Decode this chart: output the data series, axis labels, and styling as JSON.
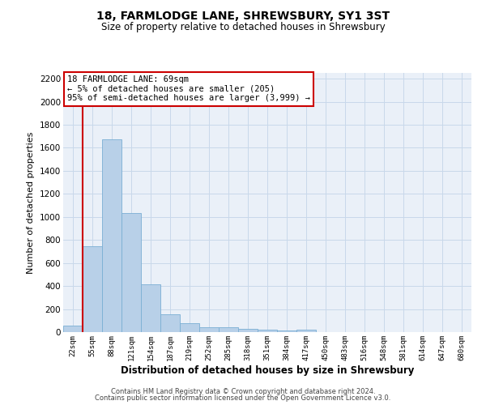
{
  "title1": "18, FARMLODGE LANE, SHREWSBURY, SY1 3ST",
  "title2": "Size of property relative to detached houses in Shrewsbury",
  "xlabel": "Distribution of detached houses by size in Shrewsbury",
  "ylabel": "Number of detached properties",
  "bar_color": "#b8d0e8",
  "bar_edge_color": "#7aafd4",
  "grid_color": "#c8d8ea",
  "background_color": "#eaf0f8",
  "categories": [
    "22sqm",
    "55sqm",
    "88sqm",
    "121sqm",
    "154sqm",
    "187sqm",
    "219sqm",
    "252sqm",
    "285sqm",
    "318sqm",
    "351sqm",
    "384sqm",
    "417sqm",
    "450sqm",
    "483sqm",
    "516sqm",
    "548sqm",
    "581sqm",
    "614sqm",
    "647sqm",
    "680sqm"
  ],
  "values": [
    55,
    745,
    1675,
    1035,
    415,
    155,
    80,
    45,
    40,
    30,
    20,
    15,
    20,
    0,
    0,
    0,
    0,
    0,
    0,
    0,
    0
  ],
  "vline_x_index": 1,
  "vline_color": "#cc0000",
  "annotation_text": "18 FARMLODGE LANE: 69sqm\n← 5% of detached houses are smaller (205)\n95% of semi-detached houses are larger (3,999) →",
  "annotation_box_facecolor": "#ffffff",
  "annotation_box_edgecolor": "#cc0000",
  "ylim": [
    0,
    2250
  ],
  "yticks": [
    0,
    200,
    400,
    600,
    800,
    1000,
    1200,
    1400,
    1600,
    1800,
    2000,
    2200
  ],
  "footer1": "Contains HM Land Registry data © Crown copyright and database right 2024.",
  "footer2": "Contains public sector information licensed under the Open Government Licence v3.0."
}
